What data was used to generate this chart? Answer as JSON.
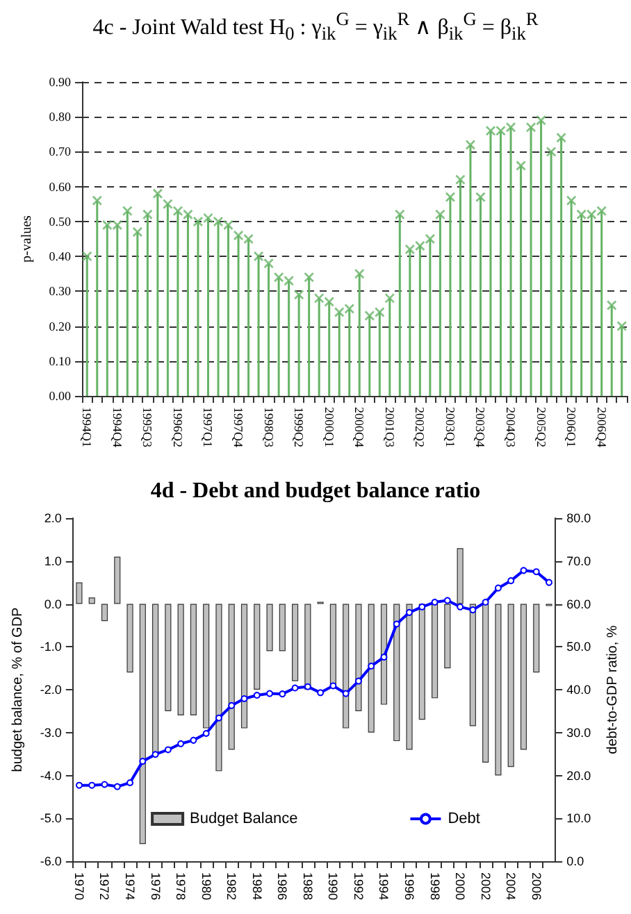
{
  "chart_data": [
    {
      "type": "lollipop",
      "title": "4c - Joint Wald test H$_{0}$ : γ$_{ik}$$^{G}$ = γ$_{ik}$$^{R}$ ∧ β$_{ik}$$^{G}$ = β$_{ik}$$^{R}$",
      "ylabel": "p-values",
      "categories": [
        "1994Q1",
        null,
        null,
        "1994Q4",
        null,
        null,
        "1995Q3",
        null,
        null,
        "1996Q2",
        null,
        null,
        "1997Q1",
        null,
        null,
        "1997Q4",
        null,
        null,
        "1998Q3",
        null,
        null,
        "1999Q2",
        null,
        null,
        "2000Q1",
        null,
        null,
        "2000Q4",
        null,
        null,
        "2001Q3",
        null,
        null,
        "2002Q2",
        null,
        null,
        "2003Q1",
        null,
        null,
        "2003Q4",
        null,
        null,
        "2004Q3",
        null,
        null,
        "2005Q2",
        null,
        null,
        "2006Q1",
        null,
        null,
        "2006Q4",
        null,
        null
      ],
      "values": [
        0.4,
        0.56,
        0.49,
        0.49,
        0.53,
        0.47,
        0.52,
        0.58,
        0.55,
        0.53,
        0.52,
        0.5,
        0.51,
        0.5,
        0.49,
        0.46,
        0.45,
        0.4,
        0.38,
        0.34,
        0.33,
        0.29,
        0.34,
        0.28,
        0.27,
        0.24,
        0.25,
        0.35,
        0.23,
        0.24,
        0.28,
        0.52,
        0.42,
        0.43,
        0.45,
        0.52,
        0.57,
        0.62,
        0.72,
        0.57,
        0.76,
        0.76,
        0.77,
        0.66,
        0.77,
        0.79,
        0.7,
        0.74,
        0.56,
        0.52,
        0.52,
        0.53,
        0.26,
        0.2
      ],
      "color": "#66b366",
      "marker": "cross",
      "grid": "y",
      "ylim": [
        0,
        0.9
      ],
      "yticks": [
        {
          "value": 0,
          "label": "0.00"
        },
        {
          "value": 0.1,
          "label": "0.10"
        },
        {
          "value": 0.2,
          "label": "0.20"
        },
        {
          "value": 0.3,
          "label": "0.30"
        },
        {
          "value": 0.4,
          "label": "0.40"
        },
        {
          "value": 0.5,
          "label": "0.50"
        },
        {
          "value": 0.6,
          "label": "0.60"
        },
        {
          "value": 0.7,
          "label": "0.70"
        },
        {
          "value": 0.8,
          "label": "0.80"
        },
        {
          "value": 0.9,
          "label": "0.90"
        }
      ]
    },
    {
      "type": "bar",
      "title": "4d - Debt and budget balance ratio",
      "ylabel": "budget balance, % of GDP",
      "y2label": "debt-to-GDP ratio, %",
      "categories": [
        "1970",
        null,
        "1972",
        null,
        "1974",
        null,
        "1976",
        null,
        "1978",
        null,
        "1980",
        null,
        "1982",
        null,
        "1984",
        null,
        "1986",
        null,
        "1988",
        null,
        "1990",
        null,
        "1992",
        null,
        "1994",
        null,
        "1996",
        null,
        "1998",
        null,
        "2000",
        null,
        "2002",
        null,
        "2004",
        null,
        "2006",
        null
      ],
      "series": [
        {
          "name": "Budget Balance",
          "color": "#c0c0c0",
          "values": [
            0.5,
            0.15,
            -0.4,
            1.1,
            -1.6,
            -5.6,
            -3.5,
            -2.5,
            -2.6,
            -2.6,
            -2.9,
            -3.9,
            -3.4,
            -2.9,
            -2.0,
            -1.1,
            -1.1,
            -1.8,
            -2.0,
            0.05,
            -1.9,
            -2.9,
            -2.5,
            -3.0,
            -2.35,
            -3.2,
            -3.4,
            -2.7,
            -2.2,
            -1.5,
            1.3,
            -2.85,
            -3.7,
            -4.0,
            -3.8,
            -3.4,
            -1.6,
            -0.05
          ]
        },
        {
          "name": "Debt",
          "type": "line",
          "axis": "y2",
          "color": "#0000ff",
          "values": [
            17.7,
            17.7,
            17.9,
            17.4,
            18.3,
            23.3,
            24.9,
            26.0,
            27.4,
            28.2,
            29.8,
            33.4,
            36.3,
            37.9,
            38.7,
            39.1,
            39.0,
            40.4,
            40.7,
            39.3,
            40.9,
            39.1,
            42.0,
            45.5,
            47.6,
            55.3,
            58.0,
            59.3,
            60.4,
            60.8,
            59.3,
            58.6,
            60.4,
            63.7,
            65.4,
            67.8,
            67.5,
            65.0
          ]
        }
      ],
      "marker": "circle",
      "legend": "bottom",
      "ylim": [
        -6,
        2
      ],
      "yticks": [
        {
          "value": -6,
          "label": "-6.0"
        },
        {
          "value": -5,
          "label": "-5.0"
        },
        {
          "value": -4,
          "label": "-4.0"
        },
        {
          "value": -3,
          "label": "-3.0"
        },
        {
          "value": -2,
          "label": "-2.0"
        },
        {
          "value": -1,
          "label": "-1.0"
        },
        {
          "value": 0,
          "label": "0.0"
        },
        {
          "value": 1,
          "label": "1.0"
        },
        {
          "value": 2,
          "label": "2.0"
        }
      ],
      "y2lim": [
        0,
        80
      ],
      "y2ticks": [
        {
          "value": 0,
          "label": "0.0"
        },
        {
          "value": 10,
          "label": "10.0"
        },
        {
          "value": 20,
          "label": "20.0"
        },
        {
          "value": 30,
          "label": "30.0"
        },
        {
          "value": 40,
          "label": "40.0"
        },
        {
          "value": 50,
          "label": "50.0"
        },
        {
          "value": 60,
          "label": "60.0"
        },
        {
          "value": 70,
          "label": "70.0"
        },
        {
          "value": 80,
          "label": "80.0"
        }
      ]
    }
  ]
}
